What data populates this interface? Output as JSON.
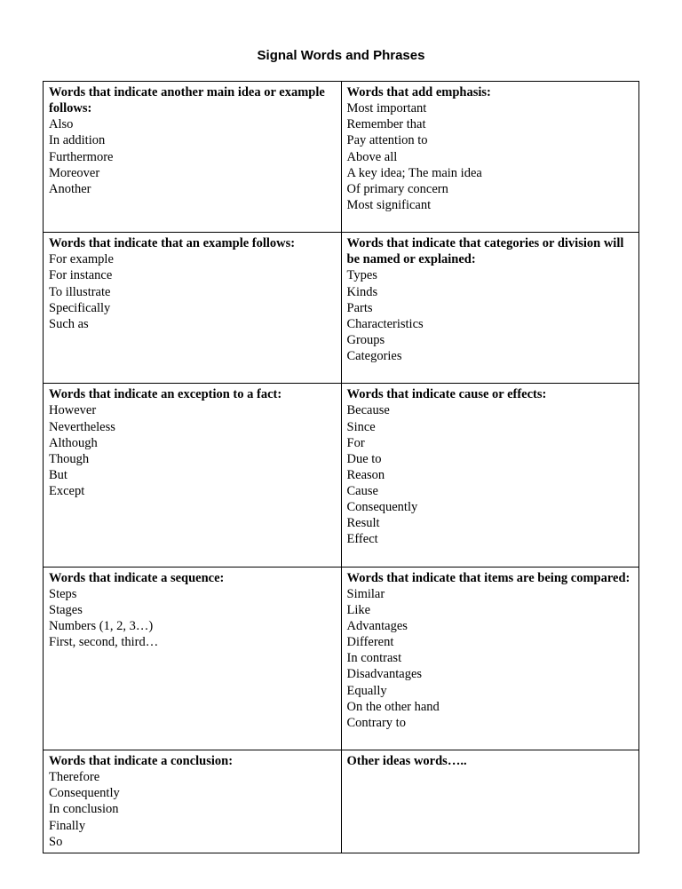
{
  "title": "Signal Words and Phrases",
  "rows": [
    {
      "left": {
        "heading": "Words that indicate another main idea or example follows:",
        "items": [
          "Also",
          "In addition",
          "Furthermore",
          "Moreover",
          "Another"
        ]
      },
      "right": {
        "heading": "Words that add emphasis:",
        "items": [
          "Most important",
          "Remember that",
          "Pay attention to",
          "Above all",
          "A key idea; The main idea",
          "Of primary concern",
          "Most significant"
        ]
      }
    },
    {
      "left": {
        "heading": "Words that indicate that an example follows:",
        "items": [
          "For example",
          "For instance",
          "To illustrate",
          "Specifically",
          "Such as"
        ]
      },
      "right": {
        "heading": "Words that indicate that categories or division will be named or explained:",
        "items": [
          "Types",
          "Kinds",
          "Parts",
          "Characteristics",
          "Groups",
          "Categories"
        ]
      }
    },
    {
      "left": {
        "heading": "Words that indicate an exception to a fact:",
        "items": [
          "However",
          "Nevertheless",
          "Although",
          "Though",
          "But",
          "Except"
        ]
      },
      "right": {
        "heading": "Words that indicate cause or effects:",
        "items": [
          "Because",
          "Since",
          "For",
          "Due to",
          "Reason",
          "Cause",
          "Consequently",
          "Result",
          "Effect"
        ]
      }
    },
    {
      "left": {
        "heading": "Words that indicate a sequence:",
        "items": [
          "Steps",
          "Stages",
          "Numbers (1, 2, 3…)",
          "First, second, third…"
        ]
      },
      "right": {
        "heading": "Words that indicate that items are being compared:",
        "items": [
          "Similar",
          "Like",
          "Advantages",
          "Different",
          "In contrast",
          "Disadvantages",
          "Equally",
          "On the other hand",
          "Contrary to"
        ]
      }
    },
    {
      "left": {
        "heading": "Words that indicate a conclusion:",
        "items": [
          "Therefore",
          "Consequently",
          "In conclusion",
          "Finally",
          "So"
        ]
      },
      "right": {
        "heading": "Other ideas words…..",
        "items": []
      }
    }
  ]
}
